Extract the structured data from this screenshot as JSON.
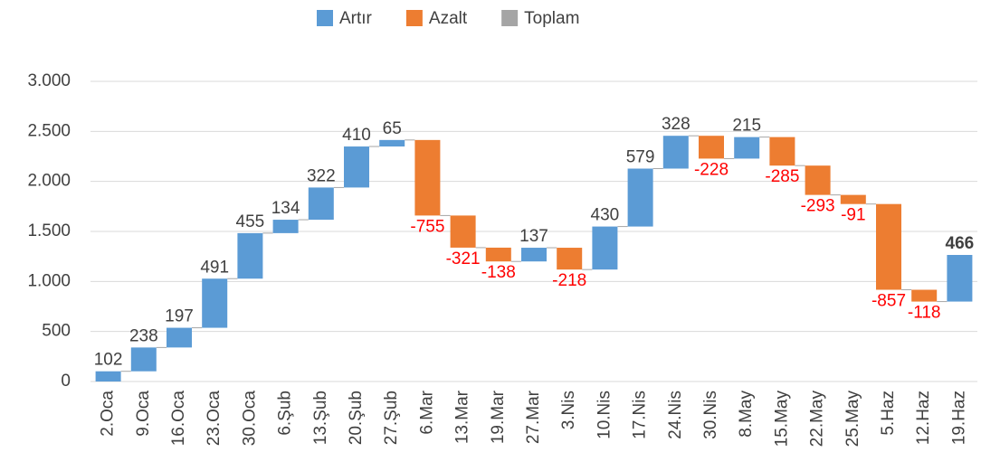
{
  "chart_data": {
    "type": "waterfall",
    "series": [
      {
        "name": "Artır",
        "color": "#5b9bd5"
      },
      {
        "name": "Azalt",
        "color": "#ed7d31"
      },
      {
        "name": "Toplam",
        "color": "#a5a5a5"
      }
    ],
    "categories": [
      "2.Oca",
      "9.Oca",
      "16.Oca",
      "23.Oca",
      "30.Oca",
      "6.Şub",
      "13.Şub",
      "20.Şub",
      "27.Şub",
      "6.Mar",
      "13.Mar",
      "19.Mar",
      "27.Mar",
      "3.Nis",
      "10.Nis",
      "17.Nis",
      "24.Nis",
      "30.Nis",
      "8.May",
      "15.May",
      "22.May",
      "25.May",
      "5.Haz",
      "12.Haz",
      "19.Haz"
    ],
    "values": [
      102,
      238,
      197,
      491,
      455,
      134,
      322,
      410,
      65,
      -755,
      -321,
      -138,
      137,
      -218,
      430,
      579,
      328,
      -228,
      215,
      -285,
      -293,
      -91,
      -857,
      -118,
      466
    ],
    "ylim": [
      0,
      3000
    ],
    "yticks": [
      0,
      500,
      {
        "value": 1000,
        "label": "1.000"
      },
      {
        "value": 1500,
        "label": "1.500"
      },
      {
        "value": 2000,
        "label": "2.000"
      },
      {
        "value": 2500,
        "label": "2.500"
      },
      {
        "value": 3000,
        "label": "3.000"
      }
    ],
    "grid": true,
    "legend": "top"
  }
}
